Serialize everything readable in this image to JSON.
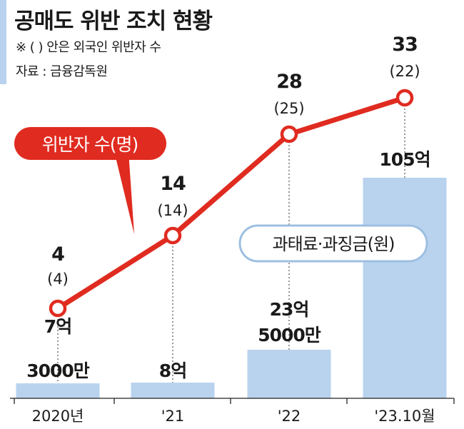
{
  "title": "공매도 위반 조치 현황",
  "note": "※ ( ) 안은 외국인 위반자 수",
  "source": "자료 : 금융감독원",
  "chart_data": {
    "type": "bar+line",
    "categories": [
      "2020년",
      "'21",
      "'22",
      "'23.10월"
    ],
    "bar_series": {
      "name": "과태료·과징금(원)",
      "values": [
        730000000,
        800000000,
        2350000000,
        10500000000
      ],
      "labels": [
        [
          "7억",
          "3000만"
        ],
        [
          "8억"
        ],
        [
          "23억",
          "5000만"
        ],
        [
          "105억"
        ]
      ],
      "color": "#b9d3ee"
    },
    "line_series": {
      "name": "위반자 수(명)",
      "values": [
        4,
        14,
        28,
        33
      ],
      "foreign_values": [
        4,
        14,
        25,
        22
      ],
      "labels": [
        "4",
        "14",
        "28",
        "33"
      ],
      "foreign_labels": [
        "(4)",
        "(14)",
        "(25)",
        "(22)"
      ],
      "color": "#e02b20"
    },
    "grid": false,
    "legend": "inline callouts"
  }
}
